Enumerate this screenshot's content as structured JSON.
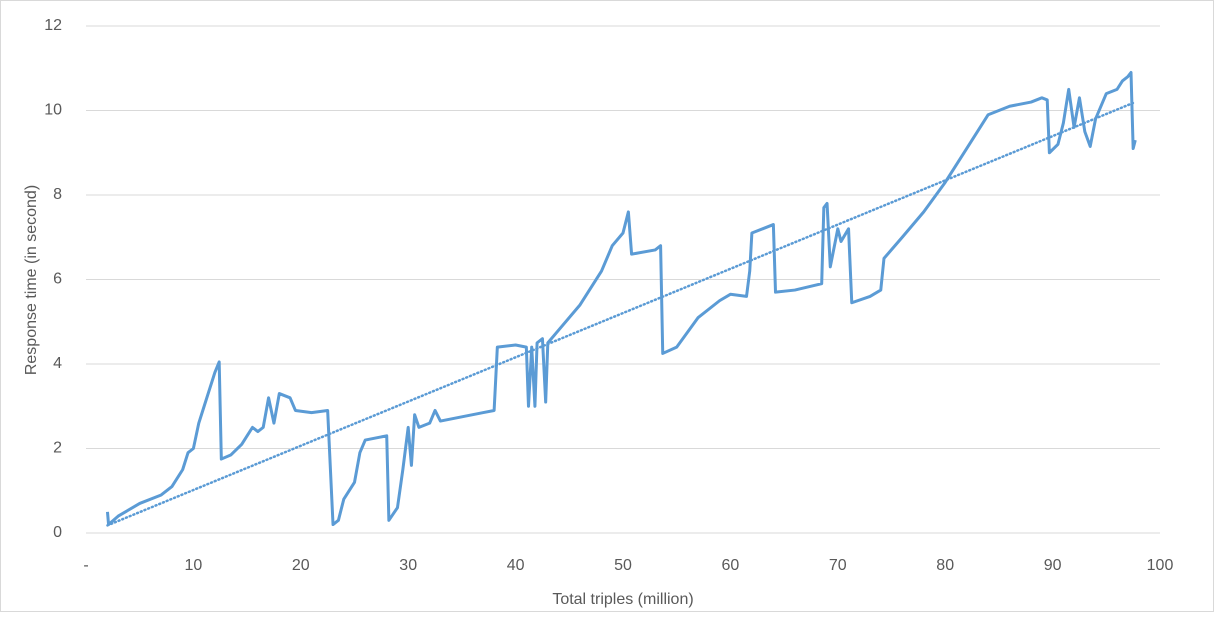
{
  "chart_data": {
    "type": "line",
    "xlabel": "Total triples (million)",
    "ylabel": "Response time (in second)",
    "xlim": [
      0,
      100
    ],
    "xticks": [
      {
        "value": 0,
        "label": "-"
      },
      10,
      20,
      30,
      40,
      50,
      60,
      70,
      80,
      90,
      100
    ],
    "ylim": [
      0,
      12
    ],
    "yticks": [
      0,
      2,
      4,
      6,
      8,
      10,
      12
    ],
    "grid": true,
    "series": [
      {
        "color": "#5b9bd5",
        "dashed": false,
        "x": [
          2.0,
          2.1,
          3,
          5,
          7,
          8,
          9,
          9.5,
          10,
          10.5,
          11,
          11.5,
          12,
          12.4,
          12.6,
          13.5,
          14.5,
          15,
          15.5,
          16,
          16.5,
          17,
          17.5,
          18,
          19,
          19.5,
          21,
          22.5,
          23,
          23.5,
          24,
          25,
          25.5,
          26,
          28,
          28.2,
          29,
          29.5,
          30,
          30.3,
          30.6,
          31,
          32,
          32.5,
          33,
          35,
          37,
          38,
          38.3,
          40,
          41,
          41.2,
          41.5,
          41.8,
          42,
          42.5,
          42.8,
          43,
          44,
          46,
          48,
          49,
          50,
          50.5,
          50.8,
          53,
          53.5,
          53.7,
          55,
          57,
          59,
          60,
          61.5,
          61.8,
          62,
          63,
          64,
          64.2,
          66,
          68.5,
          68.7,
          69,
          69.3,
          70,
          70.3,
          71,
          71.3,
          73,
          74,
          74.3,
          76,
          78,
          80,
          82,
          84,
          86,
          88,
          89,
          89.5,
          89.7,
          90.5,
          91,
          91.5,
          92,
          92.5,
          93,
          93.5,
          94,
          95,
          96,
          96.5,
          97,
          97.3,
          97.5,
          97.7
        ],
        "values": [
          0.5,
          0.2,
          0.4,
          0.7,
          0.9,
          1.1,
          1.5,
          1.9,
          2.0,
          2.6,
          3.0,
          3.4,
          3.8,
          4.05,
          1.75,
          1.85,
          2.1,
          2.3,
          2.5,
          2.4,
          2.5,
          3.2,
          2.6,
          3.3,
          3.2,
          2.9,
          2.85,
          2.9,
          0.2,
          0.3,
          0.8,
          1.2,
          1.9,
          2.2,
          2.3,
          0.3,
          0.6,
          1.5,
          2.5,
          1.6,
          2.8,
          2.5,
          2.6,
          2.9,
          2.65,
          2.75,
          2.85,
          2.9,
          4.4,
          4.45,
          4.4,
          3.0,
          4.4,
          3.0,
          4.5,
          4.6,
          3.1,
          4.5,
          4.8,
          5.4,
          6.2,
          6.8,
          7.1,
          7.6,
          6.6,
          6.7,
          6.8,
          4.25,
          4.4,
          5.1,
          5.5,
          5.65,
          5.6,
          6.2,
          7.1,
          7.2,
          7.3,
          5.7,
          5.75,
          5.9,
          7.7,
          7.8,
          6.3,
          7.2,
          6.9,
          7.2,
          5.45,
          5.6,
          5.75,
          6.5,
          7.0,
          7.6,
          8.3,
          9.1,
          9.9,
          10.1,
          10.2,
          10.3,
          10.25,
          9.0,
          9.2,
          9.7,
          10.5,
          9.6,
          10.3,
          9.5,
          9.15,
          9.8,
          10.4,
          10.5,
          10.7,
          10.8,
          10.9,
          9.1,
          9.3
        ]
      },
      {
        "color": "#5b9bd5",
        "dashed": true,
        "x": [
          2.0,
          97.7
        ],
        "values": [
          0.18,
          10.2
        ]
      }
    ]
  }
}
